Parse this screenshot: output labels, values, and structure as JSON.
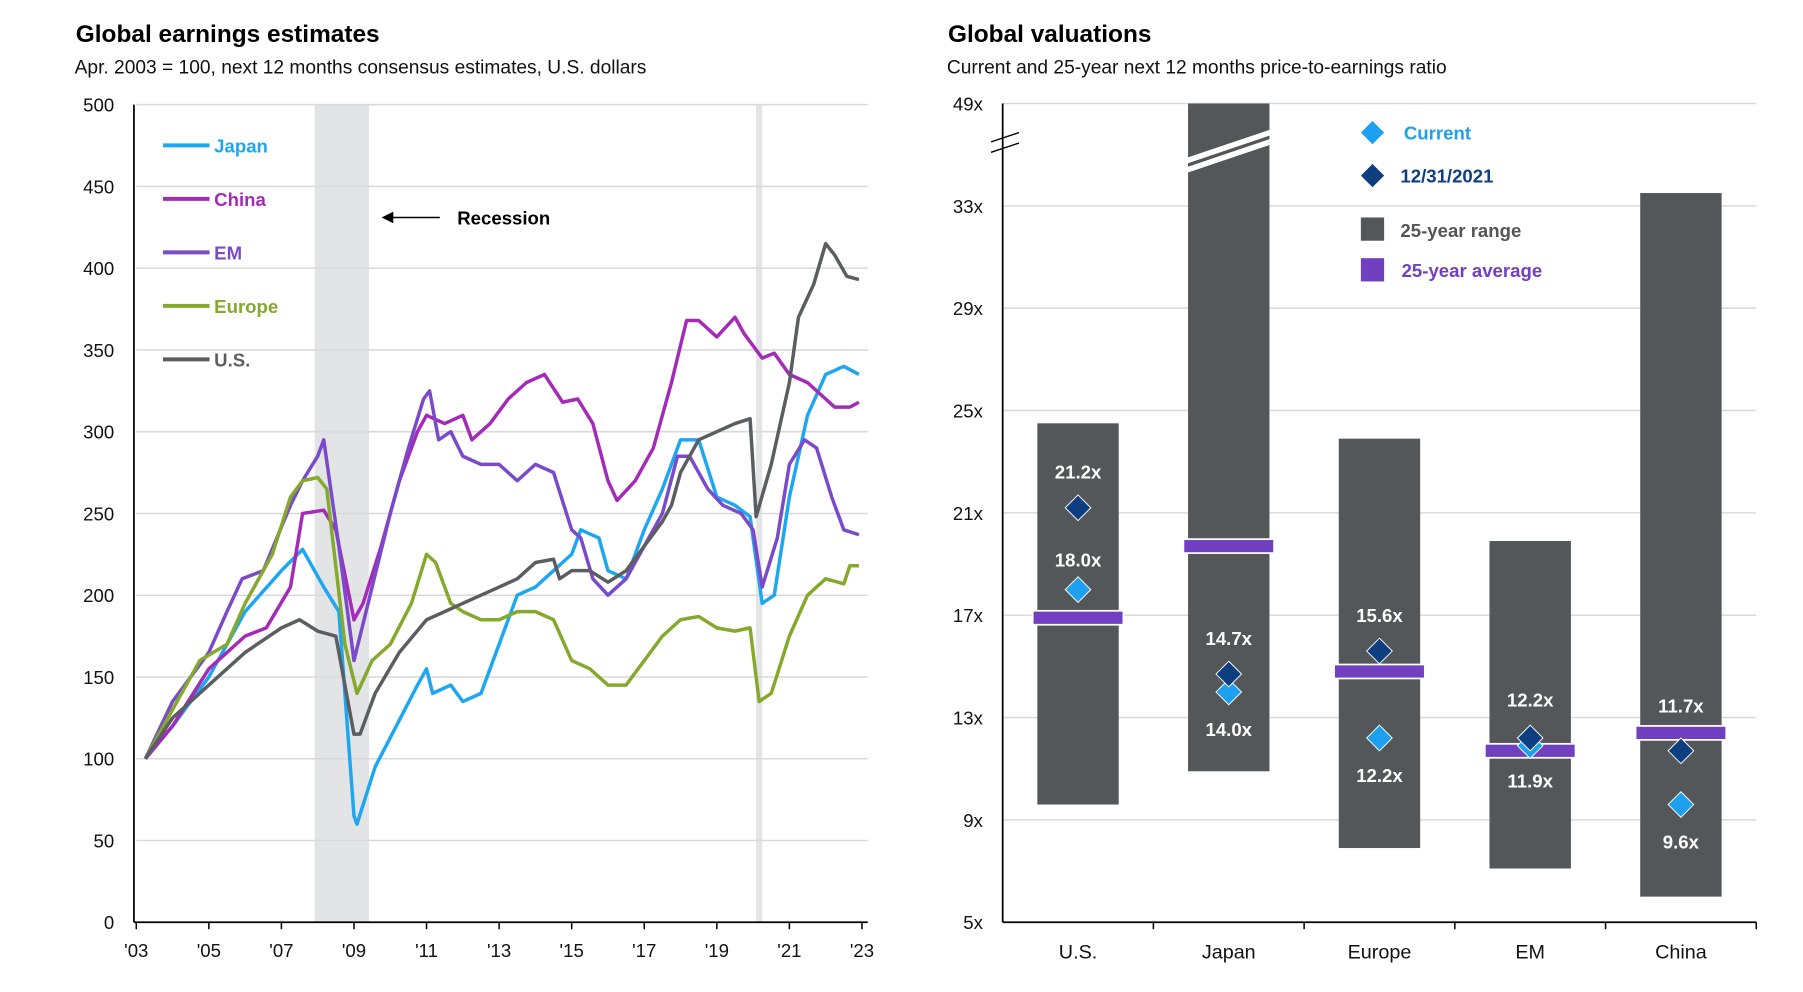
{
  "chart_data": [
    {
      "type": "line",
      "title": "Global earnings estimates",
      "subtitle": "Apr. 2003 = 100, next 12 months consensus estimates, U.S. dollars",
      "ylim": [
        0,
        500
      ],
      "y_ticks": [
        "0",
        "50",
        "100",
        "150",
        "200",
        "250",
        "300",
        "350",
        "400",
        "450",
        "500"
      ],
      "x_ticks": [
        "'03",
        "'05",
        "'07",
        "'09",
        "'11",
        "'13",
        "'15",
        "'17",
        "'19",
        "'21",
        "'23"
      ],
      "grid": true,
      "legend_placement": "top-left",
      "annotation": "Recession",
      "recessions": [
        [
          "2007-12",
          "2009-06"
        ],
        [
          "2020-02",
          "2020-04"
        ]
      ],
      "series": [
        {
          "name": "Japan",
          "color": "#1ea7f0",
          "points": [
            [
              "2003-04",
              100
            ],
            [
              "2004-01",
              120
            ],
            [
              "2005-01",
              150
            ],
            [
              "2006-01",
              190
            ],
            [
              "2007-01",
              215
            ],
            [
              "2007-08",
              228
            ],
            [
              "2008-03",
              205
            ],
            [
              "2008-08",
              190
            ],
            [
              "2009-01",
              65
            ],
            [
              "2009-02",
              60
            ],
            [
              "2009-08",
              95
            ],
            [
              "2010-03",
              120
            ],
            [
              "2010-10",
              145
            ],
            [
              "2011-01",
              155
            ],
            [
              "2011-03",
              140
            ],
            [
              "2011-09",
              145
            ],
            [
              "2012-01",
              135
            ],
            [
              "2012-07",
              140
            ],
            [
              "2013-01",
              170
            ],
            [
              "2013-07",
              200
            ],
            [
              "2014-01",
              205
            ],
            [
              "2014-07",
              215
            ],
            [
              "2015-01",
              225
            ],
            [
              "2015-04",
              240
            ],
            [
              "2015-10",
              235
            ],
            [
              "2016-01",
              215
            ],
            [
              "2016-07",
              210
            ],
            [
              "2017-01",
              240
            ],
            [
              "2017-07",
              265
            ],
            [
              "2018-01",
              295
            ],
            [
              "2018-07",
              295
            ],
            [
              "2019-01",
              260
            ],
            [
              "2019-07",
              255
            ],
            [
              "2019-12",
              248
            ],
            [
              "2020-04",
              195
            ],
            [
              "2020-08",
              200
            ],
            [
              "2021-01",
              260
            ],
            [
              "2021-07",
              310
            ],
            [
              "2022-01",
              335
            ],
            [
              "2022-07",
              340
            ],
            [
              "2022-12",
              335
            ]
          ]
        },
        {
          "name": "China",
          "color": "#a42ab8",
          "points": [
            [
              "2003-04",
              100
            ],
            [
              "2004-01",
              120
            ],
            [
              "2005-01",
              155
            ],
            [
              "2006-01",
              175
            ],
            [
              "2006-08",
              180
            ],
            [
              "2007-04",
              205
            ],
            [
              "2007-08",
              250
            ],
            [
              "2008-03",
              252
            ],
            [
              "2008-07",
              240
            ],
            [
              "2009-01",
              185
            ],
            [
              "2009-04",
              195
            ],
            [
              "2009-10",
              230
            ],
            [
              "2010-04",
              270
            ],
            [
              "2010-10",
              300
            ],
            [
              "2011-01",
              310
            ],
            [
              "2011-07",
              305
            ],
            [
              "2012-01",
              310
            ],
            [
              "2012-04",
              295
            ],
            [
              "2012-10",
              305
            ],
            [
              "2013-04",
              320
            ],
            [
              "2013-10",
              330
            ],
            [
              "2014-04",
              335
            ],
            [
              "2014-10",
              318
            ],
            [
              "2015-03",
              320
            ],
            [
              "2015-08",
              305
            ],
            [
              "2016-01",
              270
            ],
            [
              "2016-04",
              258
            ],
            [
              "2016-10",
              270
            ],
            [
              "2017-04",
              290
            ],
            [
              "2017-10",
              330
            ],
            [
              "2018-03",
              368
            ],
            [
              "2018-07",
              368
            ],
            [
              "2019-01",
              358
            ],
            [
              "2019-07",
              370
            ],
            [
              "2019-10",
              360
            ],
            [
              "2020-04",
              345
            ],
            [
              "2020-08",
              348
            ],
            [
              "2021-01",
              335
            ],
            [
              "2021-07",
              330
            ],
            [
              "2022-01",
              320
            ],
            [
              "2022-04",
              315
            ],
            [
              "2022-09",
              315
            ],
            [
              "2022-12",
              318
            ]
          ]
        },
        {
          "name": "EM",
          "color": "#7a4ac8",
          "points": [
            [
              "2003-04",
              100
            ],
            [
              "2004-01",
              135
            ],
            [
              "2005-01",
              165
            ],
            [
              "2005-07",
              190
            ],
            [
              "2005-12",
              210
            ],
            [
              "2006-07",
              215
            ],
            [
              "2007-04",
              255
            ],
            [
              "2007-08",
              270
            ],
            [
              "2008-01",
              285
            ],
            [
              "2008-03",
              295
            ],
            [
              "2008-08",
              230
            ],
            [
              "2009-01",
              160
            ],
            [
              "2009-07",
              205
            ],
            [
              "2010-01",
              250
            ],
            [
              "2010-07",
              290
            ],
            [
              "2010-12",
              320
            ],
            [
              "2011-02",
              325
            ],
            [
              "2011-05",
              295
            ],
            [
              "2011-09",
              300
            ],
            [
              "2012-01",
              285
            ],
            [
              "2012-07",
              280
            ],
            [
              "2013-01",
              280
            ],
            [
              "2013-07",
              270
            ],
            [
              "2014-01",
              280
            ],
            [
              "2014-07",
              275
            ],
            [
              "2015-01",
              240
            ],
            [
              "2015-04",
              235
            ],
            [
              "2015-08",
              210
            ],
            [
              "2016-01",
              200
            ],
            [
              "2016-07",
              210
            ],
            [
              "2017-01",
              230
            ],
            [
              "2017-07",
              250
            ],
            [
              "2017-12",
              285
            ],
            [
              "2018-04",
              285
            ],
            [
              "2018-10",
              265
            ],
            [
              "2019-03",
              255
            ],
            [
              "2019-09",
              250
            ],
            [
              "2020-01",
              240
            ],
            [
              "2020-04",
              205
            ],
            [
              "2020-09",
              235
            ],
            [
              "2021-01",
              280
            ],
            [
              "2021-06",
              295
            ],
            [
              "2021-10",
              290
            ],
            [
              "2022-03",
              260
            ],
            [
              "2022-07",
              240
            ],
            [
              "2022-12",
              237
            ]
          ]
        },
        {
          "name": "Europe",
          "color": "#84a92c",
          "points": [
            [
              "2003-04",
              100
            ],
            [
              "2004-01",
              130
            ],
            [
              "2004-10",
              160
            ],
            [
              "2005-07",
              170
            ],
            [
              "2006-01",
              195
            ],
            [
              "2006-10",
              225
            ],
            [
              "2007-04",
              260
            ],
            [
              "2007-08",
              270
            ],
            [
              "2008-01",
              272
            ],
            [
              "2008-04",
              265
            ],
            [
              "2008-10",
              170
            ],
            [
              "2009-02",
              140
            ],
            [
              "2009-07",
              160
            ],
            [
              "2010-01",
              170
            ],
            [
              "2010-08",
              195
            ],
            [
              "2011-01",
              225
            ],
            [
              "2011-04",
              220
            ],
            [
              "2011-09",
              195
            ],
            [
              "2012-01",
              190
            ],
            [
              "2012-07",
              185
            ],
            [
              "2013-01",
              185
            ],
            [
              "2013-07",
              190
            ],
            [
              "2014-01",
              190
            ],
            [
              "2014-07",
              185
            ],
            [
              "2015-01",
              160
            ],
            [
              "2015-07",
              155
            ],
            [
              "2016-01",
              145
            ],
            [
              "2016-07",
              145
            ],
            [
              "2017-01",
              160
            ],
            [
              "2017-07",
              175
            ],
            [
              "2018-01",
              185
            ],
            [
              "2018-07",
              187
            ],
            [
              "2019-01",
              180
            ],
            [
              "2019-07",
              178
            ],
            [
              "2019-12",
              180
            ],
            [
              "2020-03",
              135
            ],
            [
              "2020-07",
              140
            ],
            [
              "2021-01",
              175
            ],
            [
              "2021-07",
              200
            ],
            [
              "2022-01",
              210
            ],
            [
              "2022-07",
              207
            ],
            [
              "2022-09",
              218
            ],
            [
              "2022-12",
              218
            ]
          ]
        },
        {
          "name": "U.S.",
          "color": "#5b5e61",
          "points": [
            [
              "2003-04",
              100
            ],
            [
              "2004-01",
              125
            ],
            [
              "2005-01",
              145
            ],
            [
              "2006-01",
              165
            ],
            [
              "2007-01",
              180
            ],
            [
              "2007-07",
              185
            ],
            [
              "2008-01",
              178
            ],
            [
              "2008-07",
              175
            ],
            [
              "2009-01",
              115
            ],
            [
              "2009-03",
              115
            ],
            [
              "2009-08",
              140
            ],
            [
              "2010-04",
              165
            ],
            [
              "2011-01",
              185
            ],
            [
              "2011-07",
              190
            ],
            [
              "2012-01",
              195
            ],
            [
              "2012-07",
              200
            ],
            [
              "2013-01",
              205
            ],
            [
              "2013-07",
              210
            ],
            [
              "2014-01",
              220
            ],
            [
              "2014-07",
              222
            ],
            [
              "2014-09",
              210
            ],
            [
              "2015-01",
              215
            ],
            [
              "2015-07",
              215
            ],
            [
              "2016-01",
              208
            ],
            [
              "2016-07",
              215
            ],
            [
              "2017-01",
              230
            ],
            [
              "2017-07",
              245
            ],
            [
              "2017-10",
              255
            ],
            [
              "2018-01",
              275
            ],
            [
              "2018-07",
              295
            ],
            [
              "2019-01",
              300
            ],
            [
              "2019-07",
              305
            ],
            [
              "2019-12",
              308
            ],
            [
              "2020-02",
              248
            ],
            [
              "2020-07",
              280
            ],
            [
              "2021-01",
              330
            ],
            [
              "2021-04",
              370
            ],
            [
              "2021-09",
              390
            ],
            [
              "2022-01",
              415
            ],
            [
              "2022-04",
              408
            ],
            [
              "2022-08",
              395
            ],
            [
              "2022-12",
              393
            ]
          ]
        }
      ]
    },
    {
      "type": "range-bar",
      "title": "Global valuations",
      "subtitle": "Current and 25-year next 12 months price-to-earnings ratio",
      "y_ticks": [
        "5x",
        "9x",
        "13x",
        "17x",
        "21x",
        "25x",
        "29x",
        "33x",
        "49x"
      ],
      "y_axis_break": "between 33x and 49x",
      "grid": true,
      "legend_placement": "top-right",
      "categories": [
        "U.S.",
        "Japan",
        "Europe",
        "EM",
        "China"
      ],
      "range_low": [
        9.6,
        10.9,
        7.9,
        7.1,
        6.0
      ],
      "range_high": [
        24.5,
        49,
        23.9,
        19.9,
        35.0
      ],
      "range_high_exceeds_axis": [
        false,
        true,
        false,
        false,
        false
      ],
      "average": [
        16.9,
        19.7,
        14.8,
        11.7,
        12.4
      ],
      "current": [
        18.0,
        14.0,
        12.2,
        11.9,
        9.6
      ],
      "current_labels": [
        "18.0x",
        "14.0x",
        "12.2x",
        "11.9x",
        "9.6x"
      ],
      "dec2021": [
        21.2,
        14.7,
        15.6,
        12.2,
        11.7
      ],
      "dec2021_labels": [
        "21.2x",
        "14.7x",
        "15.6x",
        "12.2x",
        "11.7x"
      ],
      "legend": {
        "current": "Current",
        "dec2021": "12/31/2021",
        "range": "25-year range",
        "average": "25-year average"
      },
      "colors": {
        "current": "#1ea0f0",
        "dec2021": "#0d3f80",
        "range": "#545759",
        "average": "#7040c0",
        "current_text": "#1ea0f0",
        "dec2021_text": "#0d3f80",
        "range_text": "#555555",
        "average_text": "#7040c0"
      }
    }
  ]
}
